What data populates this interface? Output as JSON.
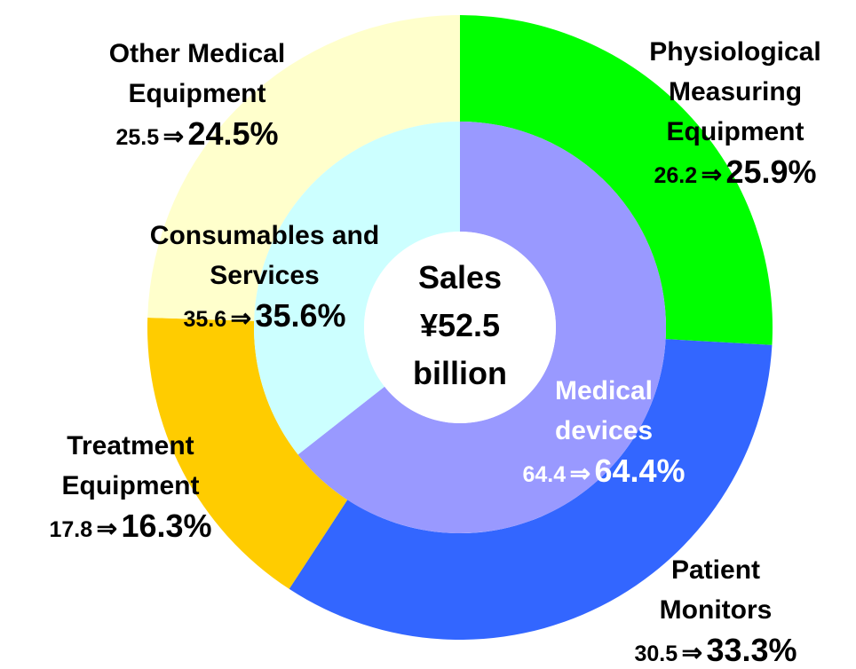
{
  "chart_data": [
    {
      "type": "donut",
      "ring": "outer",
      "categories": [
        "Physiological Measuring Equipment",
        "Patient Monitors",
        "Treatment Equipment",
        "Other Medical Equipment"
      ],
      "previous_values": [
        26.2,
        30.5,
        17.8,
        25.5
      ],
      "change_symbol": "⇒",
      "values": [
        25.9,
        33.3,
        16.3,
        24.5
      ],
      "value_labels": [
        "25.9%",
        "33.3%",
        "16.3%",
        "24.5%"
      ],
      "colors": [
        "#00ff00",
        "#3366ff",
        "#ffcc00",
        "#ffffcc"
      ]
    },
    {
      "type": "donut",
      "ring": "inner",
      "categories": [
        "Medical devices",
        "Consumables and Services"
      ],
      "previous_values": [
        64.4,
        35.6
      ],
      "change_symbol": "⇒",
      "values": [
        64.4,
        35.6
      ],
      "value_labels": [
        "64.4%",
        "35.6%"
      ],
      "colors": [
        "#9999ff",
        "#ccffff"
      ],
      "center_label": [
        "Sales",
        "¥52.5",
        "billion"
      ]
    }
  ]
}
